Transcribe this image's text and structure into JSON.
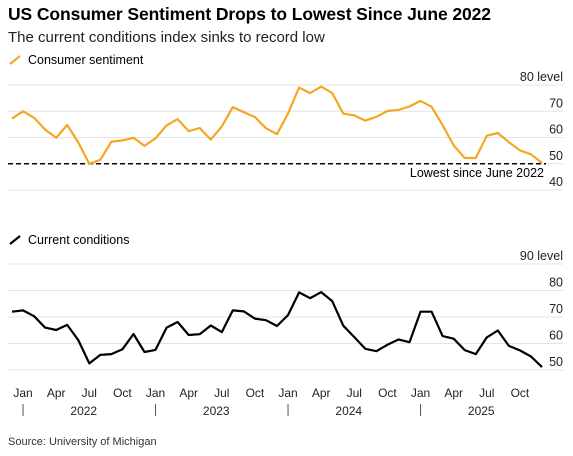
{
  "title": "US Consumer Sentiment Drops to Lowest Since June 2022",
  "subtitle": "The current conditions index sinks to record low",
  "source": "Source: University of Michigan",
  "colors": {
    "sentiment": "#f5a623",
    "current": "#000000",
    "grid": "#e3e3e3"
  },
  "chart_data": [
    {
      "type": "line",
      "series": [
        {
          "name": "Consumer sentiment",
          "values": [
            67.2,
            70.0,
            67.5,
            63.0,
            59.9,
            64.8,
            58.1,
            50.0,
            51.5,
            58.4,
            58.9,
            59.9,
            56.8,
            59.7,
            64.6,
            67.0,
            62.4,
            63.6,
            59.2,
            64.2,
            71.6,
            69.6,
            67.8,
            63.5,
            61.3,
            69.1,
            79.0,
            76.9,
            79.4,
            76.9,
            69.1,
            68.4,
            66.4,
            67.9,
            70.1,
            70.5,
            71.8,
            74.0,
            71.7,
            64.7,
            57.0,
            52.2,
            52.2,
            60.7,
            61.7,
            58.2,
            55.1,
            53.6,
            50.3
          ]
        }
      ],
      "y_ticks": [
        "80 level",
        "70",
        "60",
        "50",
        "40"
      ],
      "ylim": [
        40,
        80
      ],
      "reference_line": {
        "value": 50.0,
        "label": "Lowest since June 2022"
      }
    },
    {
      "type": "line",
      "series": [
        {
          "name": "Current conditions",
          "values": [
            72.0,
            72.5,
            70.3,
            66.0,
            65.1,
            67.0,
            61.3,
            52.5,
            55.7,
            56.0,
            57.8,
            63.6,
            56.8,
            57.6,
            66.0,
            68.1,
            63.2,
            63.5,
            66.8,
            64.3,
            72.5,
            72.1,
            69.4,
            68.8,
            66.6,
            70.7,
            79.3,
            77.1,
            79.4,
            76.0,
            66.7,
            62.4,
            58.0,
            57.1,
            59.5,
            61.5,
            60.5,
            72.0,
            72.0,
            62.8,
            61.8,
            57.5,
            56.0,
            62.3,
            64.9,
            59.1,
            57.4,
            55.1,
            51.1
          ]
        }
      ],
      "y_ticks": [
        "90 level",
        "80",
        "70",
        "60",
        "50"
      ],
      "ylim": [
        50,
        90
      ]
    }
  ],
  "x_axis": {
    "month_labels": [
      "Jan",
      "Apr",
      "Jul",
      "Oct",
      "Jan",
      "Apr",
      "Jul",
      "Oct",
      "Jan",
      "Apr",
      "Jul",
      "Oct",
      "Jan",
      "Apr",
      "Jul",
      "Oct"
    ],
    "year_labels": [
      "2022",
      "2023",
      "2024",
      "2025"
    ]
  }
}
